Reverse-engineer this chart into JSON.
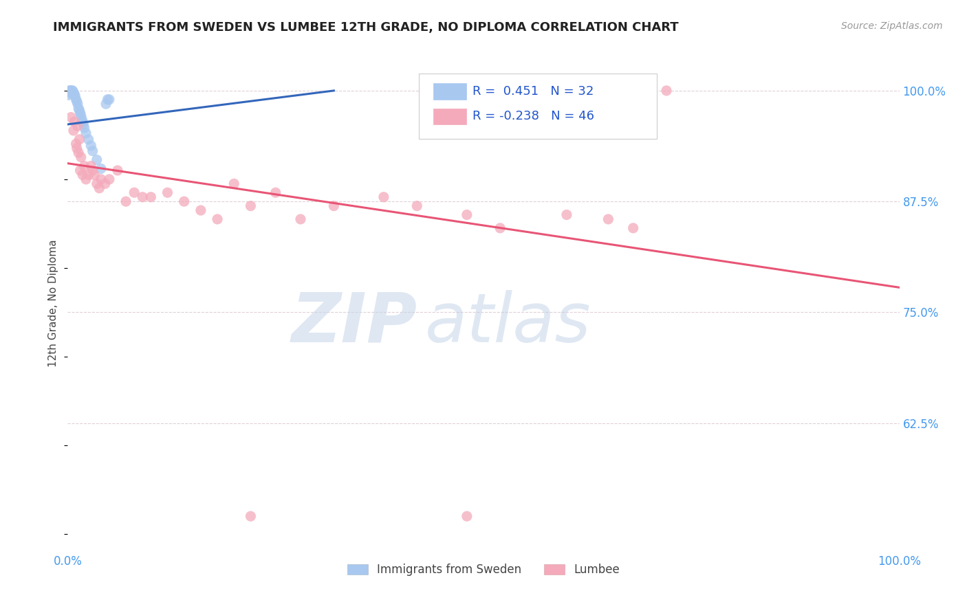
{
  "title": "IMMIGRANTS FROM SWEDEN VS LUMBEE 12TH GRADE, NO DIPLOMA CORRELATION CHART",
  "source": "Source: ZipAtlas.com",
  "ylabel": "12th Grade, No Diploma",
  "xlim": [
    0.0,
    1.0
  ],
  "ylim": [
    0.48,
    1.04
  ],
  "yticks": [
    0.625,
    0.75,
    0.875,
    1.0
  ],
  "ytick_labels": [
    "62.5%",
    "75.0%",
    "87.5%",
    "100.0%"
  ],
  "legend_r_blue": "0.451",
  "legend_n_blue": "32",
  "legend_r_pink": "-0.238",
  "legend_n_pink": "46",
  "blue_color": "#A8C8F0",
  "pink_color": "#F4AABB",
  "blue_line_color": "#3366BB",
  "pink_line_color": "#E85575",
  "watermark_zip": "ZIP",
  "watermark_atlas": "atlas",
  "blue_scatter_x": [
    0.001,
    0.002,
    0.003,
    0.004,
    0.004,
    0.005,
    0.005,
    0.006,
    0.006,
    0.007,
    0.008,
    0.009,
    0.01,
    0.011,
    0.012,
    0.013,
    0.014,
    0.015,
    0.016,
    0.017,
    0.018,
    0.019,
    0.02,
    0.022,
    0.025,
    0.028,
    0.03,
    0.035,
    0.04,
    0.046,
    0.048,
    0.05
  ],
  "blue_scatter_y": [
    0.995,
    1.0,
    1.0,
    1.0,
    0.997,
    1.0,
    0.998,
    1.0,
    0.997,
    0.998,
    0.996,
    0.994,
    0.99,
    0.988,
    0.985,
    0.98,
    0.978,
    0.975,
    0.972,
    0.968,
    0.965,
    0.962,
    0.958,
    0.952,
    0.945,
    0.938,
    0.932,
    0.922,
    0.912,
    0.985,
    0.99,
    0.99
  ],
  "pink_scatter_x": [
    0.004,
    0.007,
    0.008,
    0.01,
    0.011,
    0.012,
    0.013,
    0.014,
    0.015,
    0.016,
    0.018,
    0.02,
    0.022,
    0.025,
    0.028,
    0.03,
    0.032,
    0.035,
    0.038,
    0.04,
    0.045,
    0.05,
    0.06,
    0.07,
    0.08,
    0.09,
    0.1,
    0.12,
    0.14,
    0.16,
    0.18,
    0.2,
    0.22,
    0.25,
    0.28,
    0.32,
    0.38,
    0.42,
    0.48,
    0.52,
    0.6,
    0.65,
    0.68,
    0.72,
    0.22,
    0.48
  ],
  "pink_scatter_y": [
    0.97,
    0.955,
    0.965,
    0.94,
    0.935,
    0.96,
    0.93,
    0.945,
    0.91,
    0.925,
    0.905,
    0.915,
    0.9,
    0.905,
    0.915,
    0.91,
    0.905,
    0.895,
    0.89,
    0.9,
    0.895,
    0.9,
    0.91,
    0.875,
    0.885,
    0.88,
    0.88,
    0.885,
    0.875,
    0.865,
    0.855,
    0.895,
    0.87,
    0.885,
    0.855,
    0.87,
    0.88,
    0.87,
    0.86,
    0.845,
    0.86,
    0.855,
    0.845,
    1.0,
    0.52,
    0.52
  ],
  "blue_line_x0": 0.0,
  "blue_line_y0": 0.962,
  "blue_line_x1": 0.32,
  "blue_line_y1": 1.0,
  "pink_line_x0": 0.0,
  "pink_line_y0": 0.918,
  "pink_line_x1": 1.0,
  "pink_line_y1": 0.778
}
